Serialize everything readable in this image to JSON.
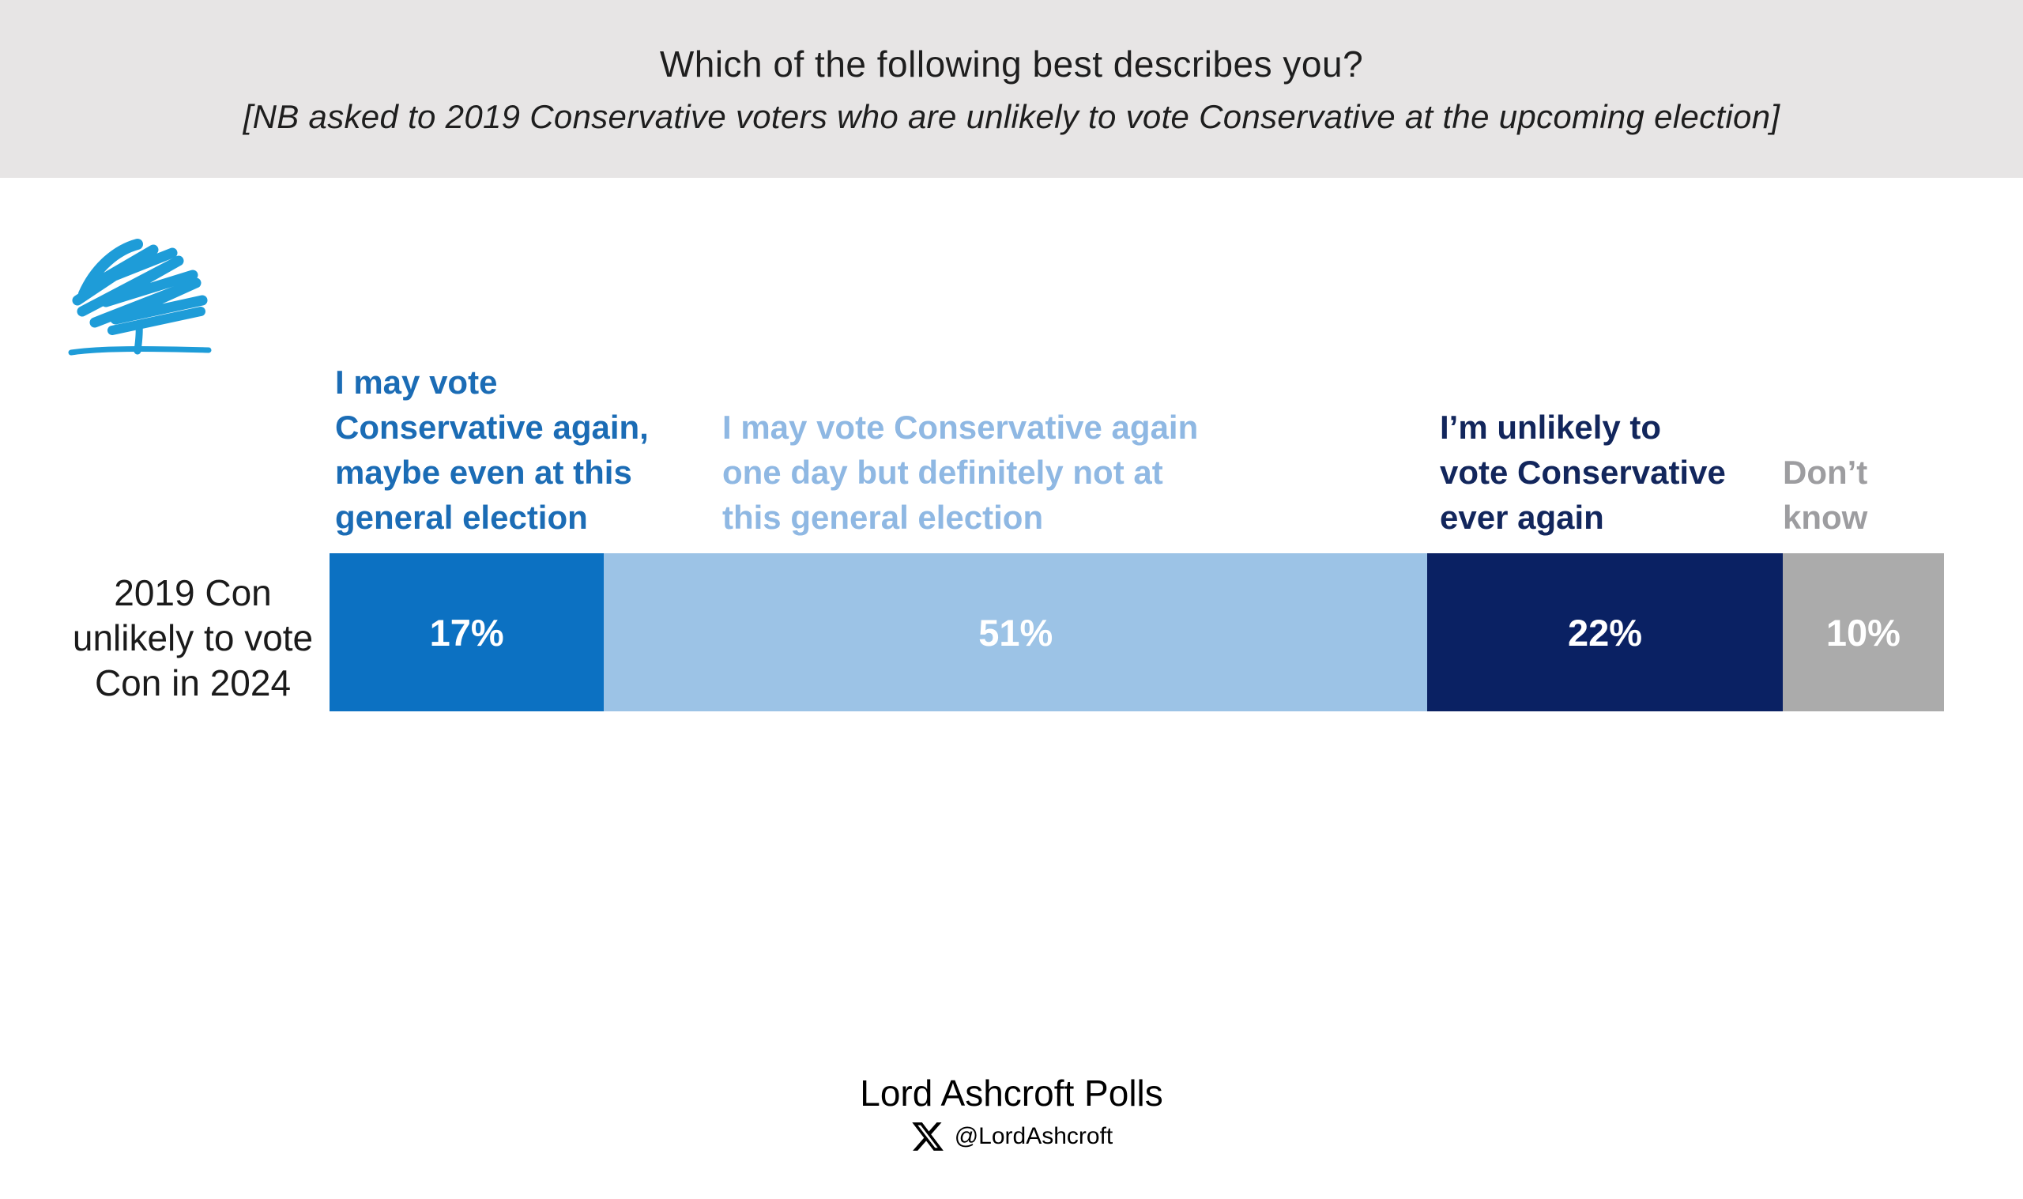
{
  "header": {
    "title": "Which of the following best describes you?",
    "subtitle": "[NB asked to 2019 Conservative voters who are unlikely to vote Conservative at the upcoming election]",
    "background_color": "#e7e5e5"
  },
  "logo": {
    "name": "conservative-party-tree-logo",
    "color": "#1E9CD8"
  },
  "footer": {
    "brand": "Lord Ashcroft Polls",
    "x_handle": "@LordAshcroft",
    "x_icon": "x-twitter-icon"
  },
  "chart_data": {
    "type": "bar",
    "variant": "stacked-horizontal",
    "title": "Which of the following best describes you?",
    "categories": [
      "2019 Con unlikely to vote Con in 2024"
    ],
    "row_label_lines": [
      "2019 Con",
      "unlikely to vote",
      "Con in 2024"
    ],
    "xlim": [
      0,
      100
    ],
    "value_text_color": "#FFFFFF",
    "grid": false,
    "legend_position": "above-bar-as-colored-text",
    "series": [
      {
        "name": "I may vote Conservative again, maybe even at this general election",
        "value": 17,
        "value_label": "17%",
        "color": "#0C71C2",
        "label_color": "#1B6CB5",
        "label_lines": [
          "I may vote",
          "Conservative again,",
          "maybe even at this",
          "general election"
        ]
      },
      {
        "name": "I may vote Conservative again one day but definitely not at this general election",
        "value": 51,
        "value_label": "51%",
        "color": "#9CC3E6",
        "label_color": "#8FB8E3",
        "label_lines": [
          "I may vote Conservative again",
          "one day but definitely not at",
          "this general election"
        ]
      },
      {
        "name": "I’m unlikely to vote Conservative ever again",
        "value": 22,
        "value_label": "22%",
        "color": "#0A2163",
        "label_color": "#12265C",
        "label_lines": [
          "I’m unlikely to",
          "vote Conservative",
          "ever again"
        ]
      },
      {
        "name": "Don’t know",
        "value": 10,
        "value_label": "10%",
        "color": "#ABABAB",
        "label_color": "#9D9DA0",
        "label_lines": [
          "Don’t",
          "know"
        ]
      }
    ]
  }
}
